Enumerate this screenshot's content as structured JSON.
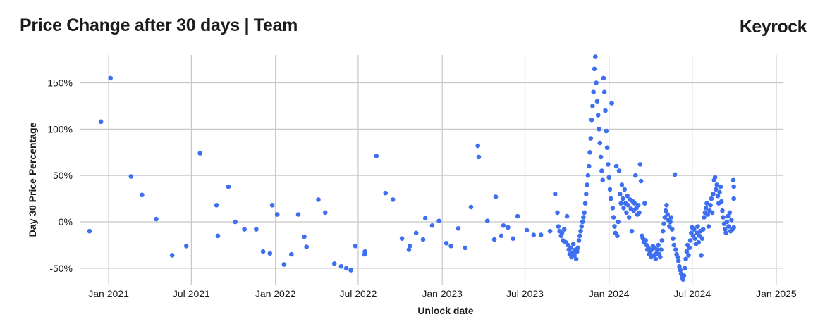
{
  "header": {
    "title": "Price Change after 30 days | Team",
    "brand": "Keyrock"
  },
  "colors": {
    "point": "#3d6ff0",
    "grid": "#c8c8c8",
    "text": "#1a1a1a"
  },
  "chart_data": {
    "type": "scatter",
    "title": "Price Change after 30 days | Team",
    "xlabel": "Unlock date",
    "ylabel": "Day 30 Price Percentage",
    "x_ticks": [
      "2021-01-01",
      "2021-07-01",
      "2022-01-01",
      "2022-07-01",
      "2023-01-01",
      "2023-07-01",
      "2024-01-01",
      "2024-07-01",
      "2025-01-01"
    ],
    "x_tick_labels": [
      "Jan 2021",
      "Jul 2021",
      "Jan 2022",
      "Jul 2022",
      "Jan 2023",
      "Jul 2023",
      "Jan 2024",
      "Jul 2024",
      "Jan 2025"
    ],
    "y_ticks": [
      -50,
      0,
      50,
      100,
      150
    ],
    "y_tick_labels": [
      "-50%",
      "0%",
      "50%",
      "100%",
      "150%"
    ],
    "xlim": [
      "2020-10-25",
      "2025-01-15"
    ],
    "ylim": [
      -63,
      180
    ],
    "grid": true,
    "series": [
      {
        "marker_color": "#3d6ff0",
        "points": [
          [
            "2020-11-20",
            -10
          ],
          [
            "2020-12-15",
            108
          ],
          [
            "2021-01-05",
            155
          ],
          [
            "2021-02-19",
            49
          ],
          [
            "2021-03-15",
            29
          ],
          [
            "2021-04-15",
            3
          ],
          [
            "2021-05-20",
            -36
          ],
          [
            "2021-06-20",
            -26
          ],
          [
            "2021-07-20",
            74
          ],
          [
            "2021-08-25",
            18
          ],
          [
            "2021-08-28",
            -15
          ],
          [
            "2021-09-20",
            38
          ],
          [
            "2021-10-05",
            0
          ],
          [
            "2021-10-25",
            -8
          ],
          [
            "2021-11-20",
            -8
          ],
          [
            "2021-12-05",
            -32
          ],
          [
            "2021-12-20",
            -34
          ],
          [
            "2021-12-25",
            18
          ],
          [
            "2022-01-05",
            8
          ],
          [
            "2022-01-20",
            -46
          ],
          [
            "2022-02-05",
            -35
          ],
          [
            "2022-02-20",
            8
          ],
          [
            "2022-03-05",
            -16
          ],
          [
            "2022-03-10",
            -27
          ],
          [
            "2022-04-05",
            24
          ],
          [
            "2022-04-20",
            10
          ],
          [
            "2022-05-10",
            -45
          ],
          [
            "2022-05-25",
            -48
          ],
          [
            "2022-06-05",
            -50
          ],
          [
            "2022-06-15",
            -52
          ],
          [
            "2022-06-25",
            -26
          ],
          [
            "2022-07-15",
            -35
          ],
          [
            "2022-07-16",
            -32
          ],
          [
            "2022-08-10",
            71
          ],
          [
            "2022-08-30",
            31
          ],
          [
            "2022-09-15",
            24
          ],
          [
            "2022-10-05",
            -18
          ],
          [
            "2022-10-20",
            -30
          ],
          [
            "2022-10-22",
            -26
          ],
          [
            "2022-11-05",
            -12
          ],
          [
            "2022-11-20",
            -19
          ],
          [
            "2022-11-25",
            4
          ],
          [
            "2022-12-10",
            -4
          ],
          [
            "2022-12-25",
            1
          ],
          [
            "2023-01-10",
            -23
          ],
          [
            "2023-01-20",
            -26
          ],
          [
            "2023-02-05",
            -7
          ],
          [
            "2023-02-20",
            -28
          ],
          [
            "2023-03-05",
            16
          ],
          [
            "2023-03-20",
            82
          ],
          [
            "2023-03-22",
            70
          ],
          [
            "2023-04-10",
            1
          ],
          [
            "2023-04-25",
            -19
          ],
          [
            "2023-04-28",
            27
          ],
          [
            "2023-05-10",
            -15
          ],
          [
            "2023-05-15",
            -4
          ],
          [
            "2023-05-25",
            -6
          ],
          [
            "2023-06-05",
            -18
          ],
          [
            "2023-06-15",
            6
          ],
          [
            "2023-07-05",
            -9
          ],
          [
            "2023-07-20",
            -14
          ],
          [
            "2023-08-05",
            -14
          ],
          [
            "2023-08-25",
            -10
          ],
          [
            "2023-09-05",
            30
          ],
          [
            "2023-09-10",
            10
          ],
          [
            "2023-09-12",
            -5
          ],
          [
            "2023-09-15",
            -10
          ],
          [
            "2023-09-18",
            -15
          ],
          [
            "2023-09-20",
            -12
          ],
          [
            "2023-09-22",
            -20
          ],
          [
            "2023-09-25",
            -8
          ],
          [
            "2023-09-28",
            -22
          ],
          [
            "2023-10-01",
            6
          ],
          [
            "2023-10-03",
            -25
          ],
          [
            "2023-10-05",
            -30
          ],
          [
            "2023-10-07",
            -35
          ],
          [
            "2023-10-09",
            -28
          ],
          [
            "2023-10-11",
            -38
          ],
          [
            "2023-10-13",
            -33
          ],
          [
            "2023-10-15",
            -24
          ],
          [
            "2023-10-17",
            -36
          ],
          [
            "2023-10-19",
            -30
          ],
          [
            "2023-10-21",
            -40
          ],
          [
            "2023-10-23",
            -32
          ],
          [
            "2023-10-25",
            -28
          ],
          [
            "2023-10-27",
            -20
          ],
          [
            "2023-10-29",
            -15
          ],
          [
            "2023-10-31",
            -10
          ],
          [
            "2023-11-02",
            -5
          ],
          [
            "2023-11-04",
            0
          ],
          [
            "2023-11-06",
            5
          ],
          [
            "2023-11-08",
            10
          ],
          [
            "2023-11-10",
            20
          ],
          [
            "2023-11-12",
            30
          ],
          [
            "2023-11-14",
            40
          ],
          [
            "2023-11-16",
            50
          ],
          [
            "2023-11-18",
            60
          ],
          [
            "2023-11-20",
            75
          ],
          [
            "2023-11-22",
            90
          ],
          [
            "2023-11-24",
            110
          ],
          [
            "2023-11-26",
            125
          ],
          [
            "2023-11-28",
            140
          ],
          [
            "2023-11-30",
            165
          ],
          [
            "2023-12-02",
            178
          ],
          [
            "2023-12-04",
            150
          ],
          [
            "2023-12-06",
            130
          ],
          [
            "2023-12-08",
            115
          ],
          [
            "2023-12-10",
            100
          ],
          [
            "2023-12-12",
            85
          ],
          [
            "2023-12-14",
            70
          ],
          [
            "2023-12-16",
            55
          ],
          [
            "2023-12-18",
            45
          ],
          [
            "2023-12-20",
            155
          ],
          [
            "2023-12-22",
            140
          ],
          [
            "2023-12-24",
            120
          ],
          [
            "2023-12-26",
            98
          ],
          [
            "2023-12-28",
            80
          ],
          [
            "2023-12-30",
            62
          ],
          [
            "2024-01-01",
            48
          ],
          [
            "2024-01-03",
            35
          ],
          [
            "2024-01-05",
            25
          ],
          [
            "2024-01-07",
            128
          ],
          [
            "2024-01-09",
            15
          ],
          [
            "2024-01-11",
            5
          ],
          [
            "2024-01-13",
            -5
          ],
          [
            "2024-01-15",
            -12
          ],
          [
            "2024-01-17",
            60
          ],
          [
            "2024-01-19",
            -15
          ],
          [
            "2024-01-21",
            0
          ],
          [
            "2024-01-23",
            55
          ],
          [
            "2024-01-25",
            30
          ],
          [
            "2024-01-27",
            20
          ],
          [
            "2024-01-29",
            40
          ],
          [
            "2024-01-31",
            25
          ],
          [
            "2024-02-02",
            15
          ],
          [
            "2024-02-04",
            35
          ],
          [
            "2024-02-06",
            20
          ],
          [
            "2024-02-08",
            10
          ],
          [
            "2024-02-10",
            28
          ],
          [
            "2024-02-12",
            18
          ],
          [
            "2024-02-14",
            5
          ],
          [
            "2024-02-16",
            24
          ],
          [
            "2024-02-18",
            14
          ],
          [
            "2024-02-20",
            -10
          ],
          [
            "2024-02-22",
            22
          ],
          [
            "2024-02-24",
            12
          ],
          [
            "2024-02-26",
            20
          ],
          [
            "2024-02-28",
            50
          ],
          [
            "2024-03-01",
            15
          ],
          [
            "2024-03-03",
            8
          ],
          [
            "2024-03-05",
            18
          ],
          [
            "2024-03-07",
            10
          ],
          [
            "2024-03-09",
            62
          ],
          [
            "2024-03-11",
            44
          ],
          [
            "2024-03-13",
            -15
          ],
          [
            "2024-03-15",
            -18
          ],
          [
            "2024-03-17",
            -22
          ],
          [
            "2024-03-19",
            20
          ],
          [
            "2024-03-21",
            -20
          ],
          [
            "2024-03-23",
            -25
          ],
          [
            "2024-03-25",
            -30
          ],
          [
            "2024-03-27",
            -28
          ],
          [
            "2024-03-29",
            -35
          ],
          [
            "2024-03-31",
            -32
          ],
          [
            "2024-04-02",
            -38
          ],
          [
            "2024-04-04",
            -30
          ],
          [
            "2024-04-06",
            -26
          ],
          [
            "2024-04-08",
            -36
          ],
          [
            "2024-04-10",
            -28
          ],
          [
            "2024-04-12",
            -40
          ],
          [
            "2024-04-14",
            -34
          ],
          [
            "2024-04-16",
            -30
          ],
          [
            "2024-04-18",
            -25
          ],
          [
            "2024-04-20",
            -35
          ],
          [
            "2024-04-22",
            -38
          ],
          [
            "2024-04-24",
            -30
          ],
          [
            "2024-04-26",
            -20
          ],
          [
            "2024-04-28",
            -10
          ],
          [
            "2024-04-30",
            -2
          ],
          [
            "2024-05-02",
            5
          ],
          [
            "2024-05-04",
            12
          ],
          [
            "2024-05-06",
            18
          ],
          [
            "2024-05-08",
            8
          ],
          [
            "2024-05-10",
            2
          ],
          [
            "2024-05-12",
            -5
          ],
          [
            "2024-05-14",
            0
          ],
          [
            "2024-05-16",
            5
          ],
          [
            "2024-05-18",
            -8
          ],
          [
            "2024-05-20",
            -18
          ],
          [
            "2024-05-22",
            -25
          ],
          [
            "2024-05-24",
            51
          ],
          [
            "2024-05-26",
            -30
          ],
          [
            "2024-05-28",
            -35
          ],
          [
            "2024-05-30",
            -38
          ],
          [
            "2024-06-01",
            -42
          ],
          [
            "2024-06-03",
            -48
          ],
          [
            "2024-06-05",
            -52
          ],
          [
            "2024-06-07",
            -56
          ],
          [
            "2024-06-09",
            -60
          ],
          [
            "2024-06-11",
            -62
          ],
          [
            "2024-06-13",
            -58
          ],
          [
            "2024-06-15",
            -50
          ],
          [
            "2024-06-17",
            -40
          ],
          [
            "2024-06-19",
            -32
          ],
          [
            "2024-06-21",
            -25
          ],
          [
            "2024-06-23",
            -36
          ],
          [
            "2024-06-25",
            -28
          ],
          [
            "2024-06-27",
            -20
          ],
          [
            "2024-06-29",
            -12
          ],
          [
            "2024-07-01",
            -6
          ],
          [
            "2024-07-03",
            -15
          ],
          [
            "2024-07-05",
            -8
          ],
          [
            "2024-07-07",
            -18
          ],
          [
            "2024-07-09",
            -24
          ],
          [
            "2024-07-11",
            -12
          ],
          [
            "2024-07-13",
            -5
          ],
          [
            "2024-07-15",
            -22
          ],
          [
            "2024-07-17",
            -15
          ],
          [
            "2024-07-19",
            -10
          ],
          [
            "2024-07-21",
            -36
          ],
          [
            "2024-07-23",
            -18
          ],
          [
            "2024-07-25",
            -8
          ],
          [
            "2024-07-27",
            5
          ],
          [
            "2024-07-29",
            10
          ],
          [
            "2024-07-31",
            15
          ],
          [
            "2024-08-02",
            20
          ],
          [
            "2024-08-04",
            8
          ],
          [
            "2024-08-06",
            -5
          ],
          [
            "2024-08-08",
            12
          ],
          [
            "2024-08-10",
            18
          ],
          [
            "2024-08-12",
            25
          ],
          [
            "2024-08-14",
            10
          ],
          [
            "2024-08-16",
            30
          ],
          [
            "2024-08-18",
            45
          ],
          [
            "2024-08-20",
            48
          ],
          [
            "2024-08-22",
            35
          ],
          [
            "2024-08-24",
            40
          ],
          [
            "2024-08-26",
            28
          ],
          [
            "2024-08-28",
            20
          ],
          [
            "2024-08-30",
            32
          ],
          [
            "2024-09-01",
            38
          ],
          [
            "2024-09-03",
            22
          ],
          [
            "2024-09-05",
            12
          ],
          [
            "2024-09-07",
            5
          ],
          [
            "2024-09-09",
            -2
          ],
          [
            "2024-09-11",
            -8
          ],
          [
            "2024-09-13",
            -12
          ],
          [
            "2024-09-15",
            0
          ],
          [
            "2024-09-17",
            6
          ],
          [
            "2024-09-19",
            -5
          ],
          [
            "2024-09-21",
            10
          ],
          [
            "2024-09-23",
            -10
          ],
          [
            "2024-09-25",
            2
          ],
          [
            "2024-09-27",
            -8
          ],
          [
            "2024-09-29",
            45
          ],
          [
            "2024-09-30",
            38
          ],
          [
            "2024-09-30",
            25
          ],
          [
            "2024-09-30",
            -6
          ]
        ]
      }
    ]
  }
}
